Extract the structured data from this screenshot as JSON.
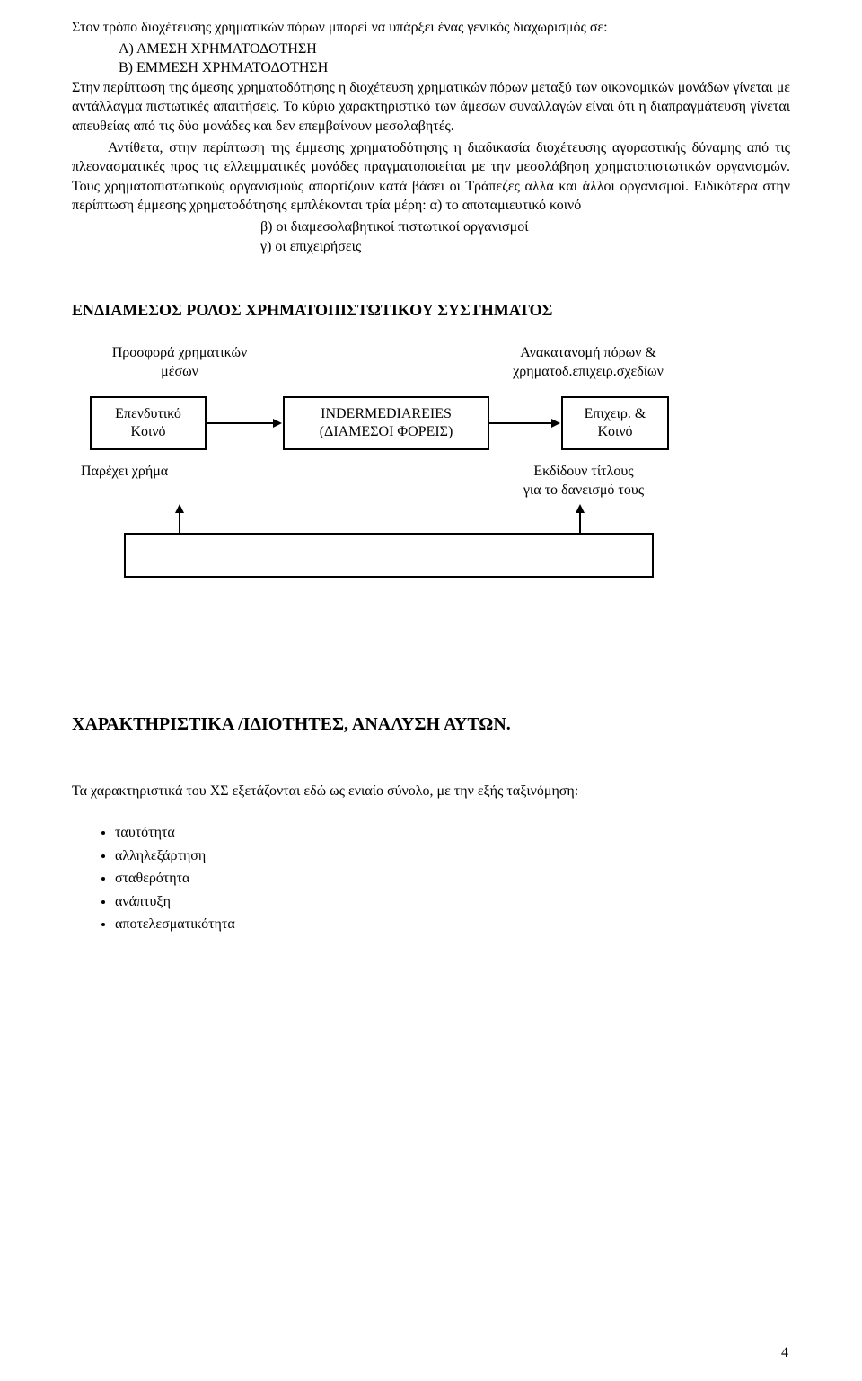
{
  "paragraphs": {
    "p1": "Στον τρόπο διοχέτευσης χρηματικών πόρων μπορεί να υπάρξει ένας γενικός διαχωρισμός σε:",
    "a": "Α) ΑΜΕΣΗ ΧΡΗΜΑΤΟΔΟΤΗΣΗ",
    "b": "Β) ΕΜΜΕΣΗ ΧΡΗΜΑΤΟΔΟΤΗΣΗ",
    "p2": "Στην περίπτωση της άμεσης χρηματοδότησης η διοχέτευση χρηματικών πόρων μεταξύ των οικονομικών μονάδων γίνεται με αντάλλαγμα πιστωτικές απαιτήσεις. Το κύριο χαρακτηριστικό των άμεσων συναλλαγών είναι ότι η διαπραγμάτευση γίνεται απευθείας από τις δύο μονάδες και δεν επεμβαίνουν μεσολαβητές.",
    "p3": "Αντίθετα, στην περίπτωση της έμμεσης χρηματοδότησης η διαδικασία διοχέτευσης αγοραστικής δύναμης από τις πλεονασματικές προς τις ελλειμματικές μονάδες πραγματοποιείται με την μεσολάβηση χρηματοπιστωτικών οργανισμών. Τους χρηματοπιστωτικούς οργανισμούς απαρτίζουν κατά βάσει οι Τράπεζες αλλά και άλλοι οργανισμοί. Ειδικότερα στην περίπτωση έμμεσης χρηματοδότησης εμπλέκονται τρία μέρη: α) το αποταμιευτικό κοινό",
    "beta": "β)  οι διαμεσολαβητικοί πιστωτικοί οργανισμοί",
    "gamma": "γ) οι επιχειρήσεις"
  },
  "section_title": "ΕΝΔΙΑΜΕΣΟΣ  ΡΟΛΟΣ  ΧΡΗΜΑΤΟΠΙΣΤΩΤΙΚΟΥ  ΣΥΣΤΗΜΑΤΟΣ",
  "diagram": {
    "label_left_top": "Προσφορά χρηματικών\nμέσων",
    "label_right_top": "Ανακατανομή πόρων &\nχρηματοδ.επιχειρ.σχεδίων",
    "box_left": "Επενδυτικό\nΚοινό",
    "box_mid": "INDERMEDIAREIES\n(ΔΙΑΜΕΣΟΙ ΦΟΡΕΙΣ)",
    "box_right": "Επιχειρ. &\nΚοινό",
    "label_left_bottom": "Παρέχει χρήμα",
    "label_right_bottom": "Εκδίδουν τίτλους\nγια το δανεισμό τους"
  },
  "heading2": "ΧΑΡΑΚΤΗΡΙΣΤΙΚΑ /ΙΔΙΟΤΗΤΕΣ, ΑΝΑΛΥΣΗ ΑΥΤΩΝ.",
  "intro2": "Τα χαρακτηριστικά του ΧΣ εξετάζονται εδώ ως ενιαίο σύνολο, με την εξής ταξινόμηση:",
  "bullets": [
    "ταυτότητα",
    "αλληλεξάρτηση",
    "σταθερότητα",
    "ανάπτυξη",
    "αποτελεσματικότητα"
  ],
  "page_number": "4"
}
